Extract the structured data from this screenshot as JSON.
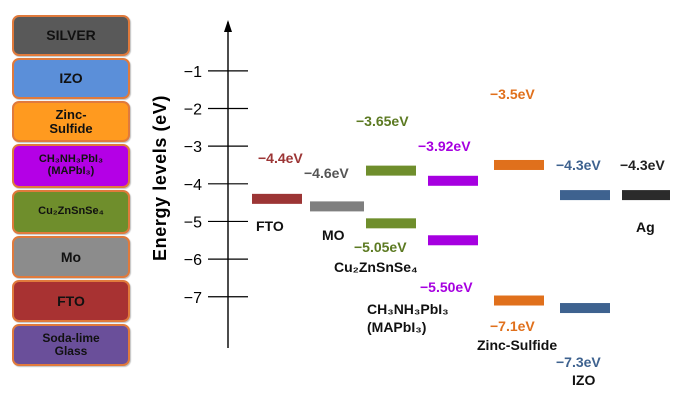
{
  "layer_stack": [
    {
      "label": "SILVER",
      "color": "#595959",
      "font_size": 14
    },
    {
      "label": "IZO",
      "color": "#5b8fd9",
      "font_size": 14
    },
    {
      "label": "Zinc-\nSulfide",
      "color": "#ff9a1f",
      "font_size": 13
    },
    {
      "label": "CH₃NH₃PbI₃\n(MAPbI₃)",
      "color": "#b400e6",
      "font_size": 11
    },
    {
      "label": "Cu₂ZnSnSe₄",
      "color": "#6f8e2c",
      "font_size": 11
    },
    {
      "label": "Mo",
      "color": "#8c8c8c",
      "font_size": 14
    },
    {
      "label": "FTO",
      "color": "#a83232",
      "font_size": 14
    },
    {
      "label": "Soda-lime\nGlass",
      "color": "#6a4f9a",
      "font_size": 12
    }
  ],
  "axis": {
    "label": "Energy levels (eV)",
    "ticks": [
      "−1",
      "−2",
      "−3",
      "−4",
      "−5",
      "−6",
      "−7"
    ],
    "tick_values": [
      -1,
      -2,
      -3,
      -4,
      -5,
      -6,
      -7
    ]
  },
  "levels": [
    {
      "id": "fto",
      "energy": -4.4,
      "color": "#9c3535",
      "value_label": "−4.4eV",
      "name": "FTO",
      "label_color": "#9c3535"
    },
    {
      "id": "mo",
      "energy": -4.6,
      "color": "#7f7f7f",
      "value_label": "−4.6eV",
      "name": "MO",
      "label_color": "#555555"
    },
    {
      "id": "czts-cb",
      "energy": -3.65,
      "color": "#6f8e2c",
      "value_label": "−3.65eV",
      "label_color": "#5c7a22"
    },
    {
      "id": "czts-vb",
      "energy": -5.05,
      "color": "#6f8e2c",
      "value_label": "−5.05eV",
      "name": "Cu₂ZnSnSe₄",
      "label_color": "#5c7a22"
    },
    {
      "id": "mapbi-cb",
      "energy": -3.92,
      "color": "#a600e0",
      "value_label": "−3.92eV",
      "label_color": "#a600e0"
    },
    {
      "id": "mapbi-vb",
      "energy": -5.5,
      "color": "#a600e0",
      "value_label": "−5.50eV",
      "name": "CH₃NH₃PbI₃\n(MAPbI₃)",
      "label_color": "#a600e0"
    },
    {
      "id": "zns-cb",
      "energy": -3.5,
      "color": "#e0701c",
      "value_label": "−3.5eV",
      "label_color": "#e0701c"
    },
    {
      "id": "zns-vb",
      "energy": -7.1,
      "color": "#e0701c",
      "value_label": "−7.1eV",
      "name": "Zinc-Sulfide",
      "label_color": "#e0701c"
    },
    {
      "id": "izo-top",
      "energy": -4.3,
      "color": "#3e628f",
      "value_label": "−4.3eV",
      "label_color": "#3e628f"
    },
    {
      "id": "izo-bottom",
      "energy": -7.3,
      "color": "#3e628f",
      "value_label": "−7.3eV",
      "name": "IZO",
      "label_color": "#3e628f"
    },
    {
      "id": "ag",
      "energy": -4.3,
      "color": "#2b2b2b",
      "value_label": "−4.3eV",
      "name": "Ag",
      "label_color": "#222222"
    }
  ]
}
